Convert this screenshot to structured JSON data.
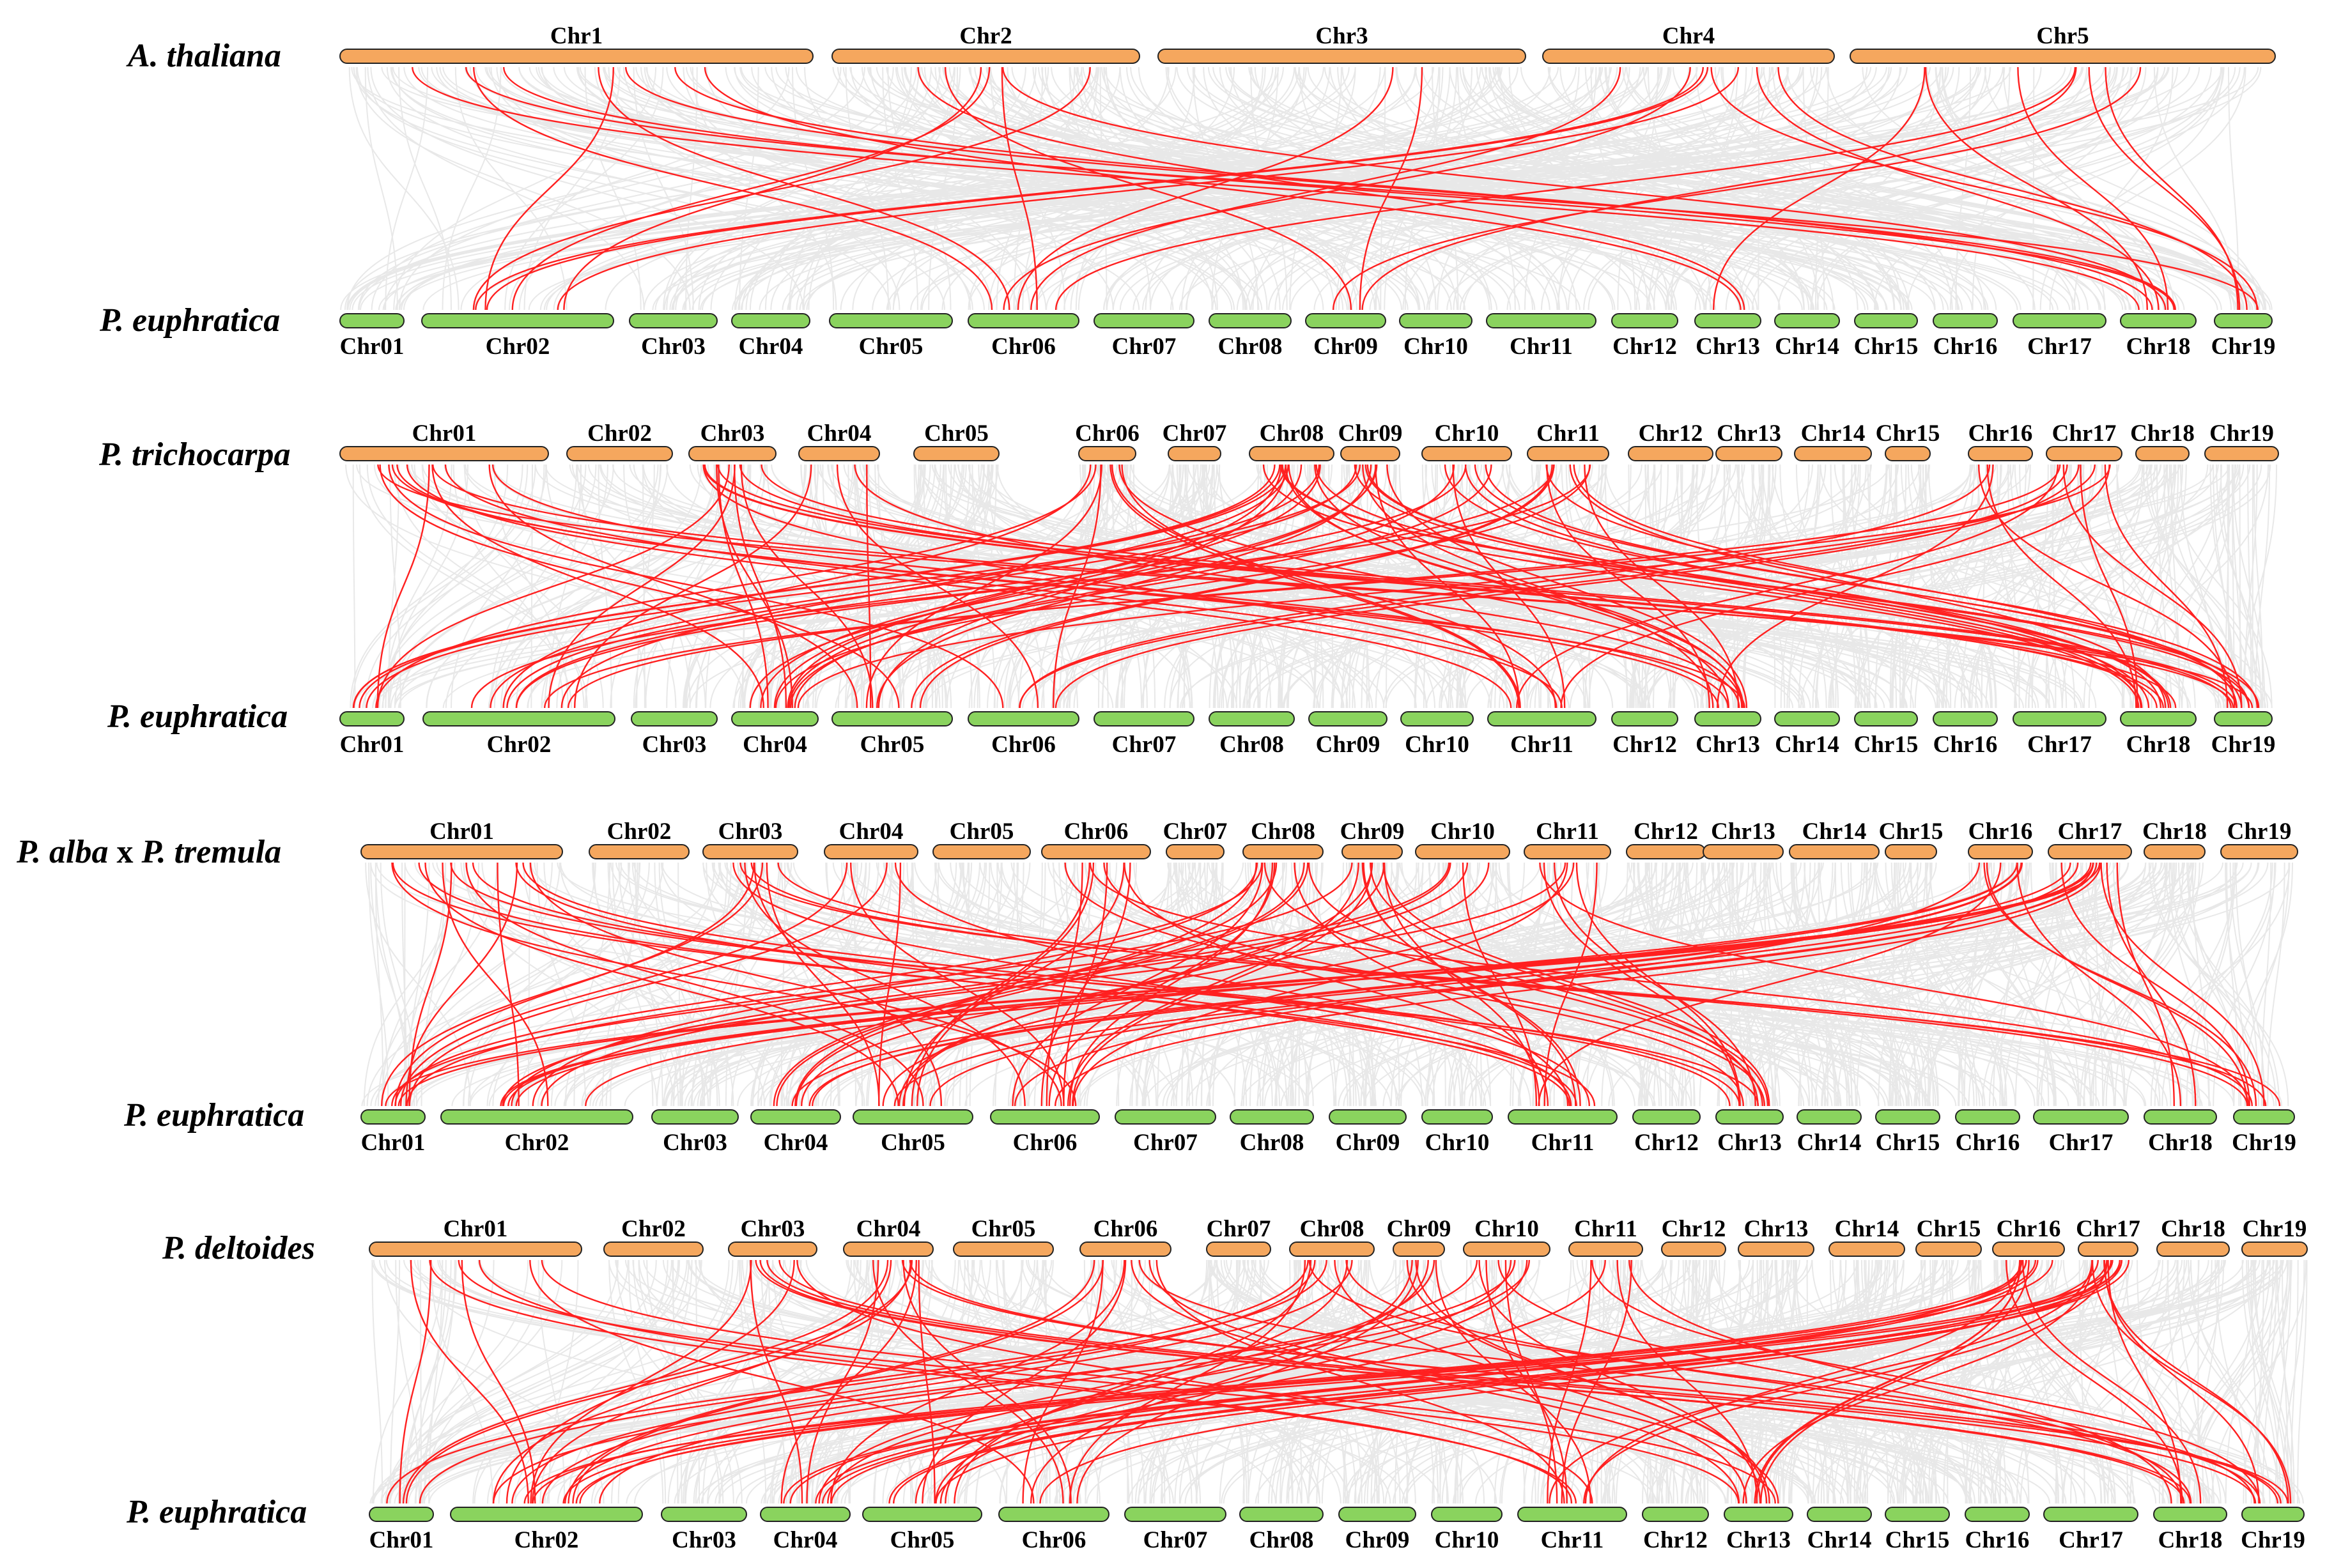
{
  "colors": {
    "top_bar": "#f5a75e",
    "bottom_bar": "#8ad35e",
    "background_links": "#e6e6e6",
    "highlight_links": "#ff2020",
    "text": "#000000"
  },
  "panels": [
    {
      "id": "athaliana",
      "top_species": "A. thaliana",
      "bottom_species": "P. euphratica",
      "top_chromosomes": [
        "Chr1",
        "Chr2",
        "Chr3",
        "Chr4",
        "Chr5"
      ],
      "bottom_chromosomes": [
        "Chr01",
        "Chr02",
        "Chr03",
        "Chr04",
        "Chr05",
        "Chr06",
        "Chr07",
        "Chr08",
        "Chr09",
        "Chr10",
        "Chr11",
        "Chr12",
        "Chr13",
        "Chr14",
        "Chr15",
        "Chr16",
        "Chr17",
        "Chr18",
        "Chr19"
      ]
    },
    {
      "id": "ptrichocarpa",
      "top_species": "P. trichocarpa",
      "bottom_species": "P. euphratica",
      "top_chromosomes": [
        "Chr01",
        "Chr02",
        "Chr03",
        "Chr04",
        "Chr05",
        "Chr06",
        "Chr07",
        "Chr08",
        "Chr09",
        "Chr10",
        "Chr11",
        "Chr12",
        "Chr13",
        "Chr14",
        "Chr15",
        "Chr16",
        "Chr17",
        "Chr18",
        "Chr19"
      ],
      "bottom_chromosomes": [
        "Chr01",
        "Chr02",
        "Chr03",
        "Chr04",
        "Chr05",
        "Chr06",
        "Chr07",
        "Chr08",
        "Chr09",
        "Chr10",
        "Chr11",
        "Chr12",
        "Chr13",
        "Chr14",
        "Chr15",
        "Chr16",
        "Chr17",
        "Chr18",
        "Chr19"
      ]
    },
    {
      "id": "palba",
      "top_species_part1": "P. alba",
      "top_species_sep": " x ",
      "top_species_part2": "P. tremula",
      "bottom_species": "P. euphratica",
      "top_chromosomes": [
        "Chr01",
        "Chr02",
        "Chr03",
        "Chr04",
        "Chr05",
        "Chr06",
        "Chr07",
        "Chr08",
        "Chr09",
        "Chr10",
        "Chr11",
        "Chr12",
        "Chr13",
        "Chr14",
        "Chr15",
        "Chr16",
        "Chr17",
        "Chr18",
        "Chr19"
      ],
      "bottom_chromosomes": [
        "Chr01",
        "Chr02",
        "Chr03",
        "Chr04",
        "Chr05",
        "Chr06",
        "Chr07",
        "Chr08",
        "Chr09",
        "Chr10",
        "Chr11",
        "Chr12",
        "Chr13",
        "Chr14",
        "Chr15",
        "Chr16",
        "Chr17",
        "Chr18",
        "Chr19"
      ]
    },
    {
      "id": "pdeltoides",
      "top_species": "P. deltoides",
      "bottom_species": "P. euphratica",
      "top_chromosomes": [
        "Chr01",
        "Chr02",
        "Chr03",
        "Chr04",
        "Chr05",
        "Chr06",
        "Chr07",
        "Chr08",
        "Chr09",
        "Chr10",
        "Chr11",
        "Chr12",
        "Chr13",
        "Chr14",
        "Chr15",
        "Chr16",
        "Chr17",
        "Chr18",
        "Chr19"
      ],
      "bottom_chromosomes": [
        "Chr01",
        "Chr02",
        "Chr03",
        "Chr04",
        "Chr05",
        "Chr06",
        "Chr07",
        "Chr08",
        "Chr09",
        "Chr10",
        "Chr11",
        "Chr12",
        "Chr13",
        "Chr14",
        "Chr15",
        "Chr16",
        "Chr17",
        "Chr18",
        "Chr19"
      ]
    }
  ]
}
